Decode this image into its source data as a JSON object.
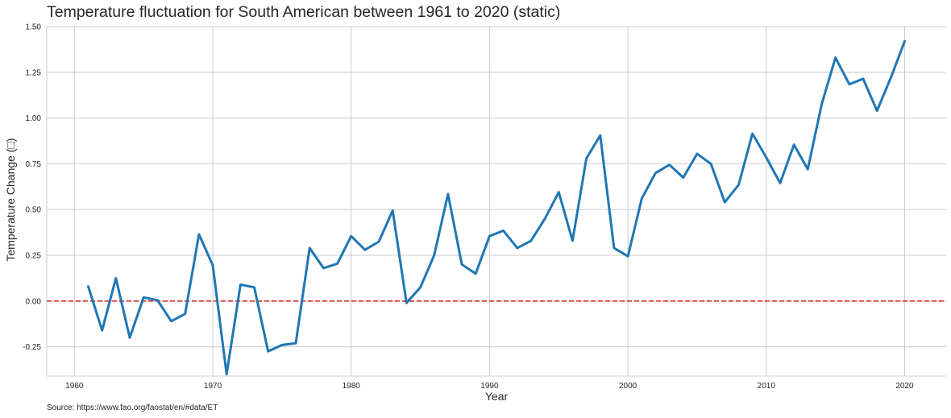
{
  "chart_data": {
    "type": "line",
    "title": "Temperature fluctuation for South American between 1961 to 2020 (static)",
    "xlabel": "Year",
    "ylabel": "Temperature Change (□)",
    "source": "Source: https://www.fao.org/faostat/en/#data/ET",
    "xlim": [
      1958,
      2023
    ],
    "ylim": [
      -0.41,
      1.5
    ],
    "x_ticks": [
      1960,
      1970,
      1980,
      1990,
      2000,
      2010,
      2020
    ],
    "x_tick_labels": [
      "1960",
      "1970",
      "1980",
      "1990",
      "2000",
      "2010",
      "2020"
    ],
    "y_ticks": [
      -0.25,
      0,
      0.25,
      0.5,
      0.75,
      1,
      1.25,
      1.5
    ],
    "y_tick_labels": [
      "-0.25",
      "0.00",
      "0.25",
      "0.50",
      "0.75",
      "1.00",
      "1.25",
      "1.50"
    ],
    "grid": true,
    "reference_line": {
      "y": 0,
      "color": "#d62728",
      "style": "dashed"
    },
    "colors": {
      "line": "#1f77b4",
      "grid": "#cccccc",
      "text": "#262626",
      "reference": "#d62728"
    },
    "series": [
      {
        "x": [
          1961,
          1962,
          1963,
          1964,
          1965,
          1966,
          1967,
          1968,
          1969,
          1970,
          1971,
          1972,
          1973,
          1974,
          1975,
          1976,
          1977,
          1978,
          1979,
          1980,
          1981,
          1982,
          1983,
          1984,
          1985,
          1986,
          1987,
          1988,
          1989,
          1990,
          1991,
          1992,
          1993,
          1994,
          1995,
          1996,
          1997,
          1998,
          1999,
          2000,
          2001,
          2002,
          2003,
          2004,
          2005,
          2006,
          2007,
          2008,
          2009,
          2010,
          2011,
          2012,
          2013,
          2014,
          2015,
          2016,
          2017,
          2018,
          2019,
          2020
        ],
        "values": [
          0.08,
          -0.16,
          0.125,
          -0.2,
          0.02,
          0.005,
          -0.11,
          -0.07,
          0.365,
          0.195,
          -0.4,
          0.09,
          0.075,
          -0.275,
          -0.24,
          -0.23,
          0.29,
          0.18,
          0.205,
          0.355,
          0.28,
          0.325,
          0.495,
          -0.01,
          0.075,
          0.25,
          0.585,
          0.2,
          0.15,
          0.355,
          0.385,
          0.29,
          0.33,
          0.45,
          0.595,
          0.33,
          0.78,
          0.905,
          0.29,
          0.245,
          0.56,
          0.7,
          0.745,
          0.675,
          0.805,
          0.75,
          0.54,
          0.635,
          0.915,
          0.785,
          0.645,
          0.855,
          0.72,
          1.075,
          1.33,
          1.185,
          1.215,
          1.04,
          1.22,
          1.42
        ]
      }
    ]
  }
}
